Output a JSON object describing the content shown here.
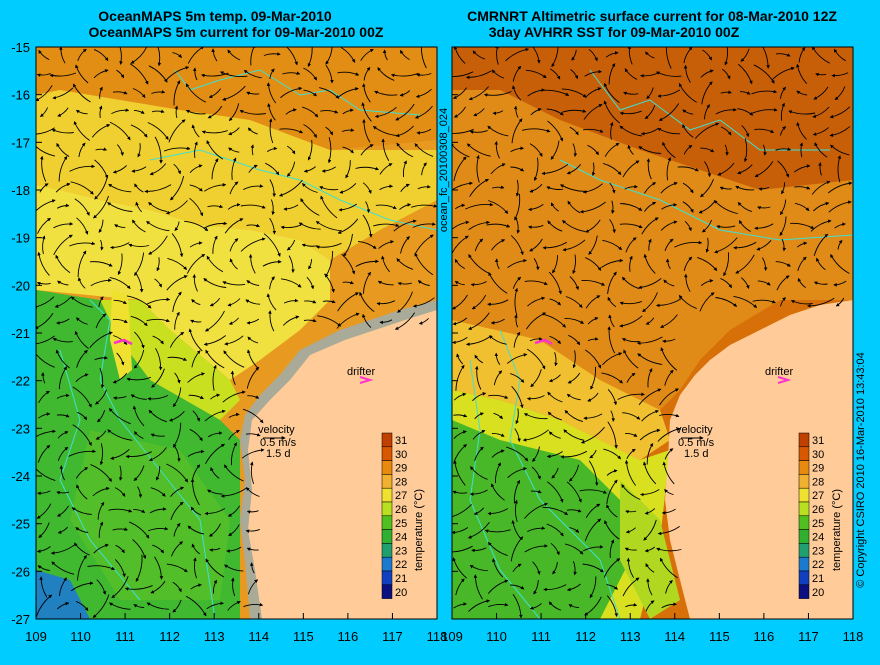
{
  "left_panel": {
    "title_line1": "OceanMAPS 5m temp. 09-Mar-2010",
    "title_line2": "OceanMAPS 5m current for 09-Mar-2010 00Z"
  },
  "right_panel": {
    "title_line1": "CMRNRT Altimetric surface current for 08-Mar-2010 12Z",
    "title_line2": "3day AVHRR SST for 09-Mar-2010 00Z"
  },
  "side_label": "ocean_fc_20100308_024",
  "copyright": "© Copyright CSIRO 2010   16-Mar-2010 13:43:04",
  "latitude_ticks": [
    "-15",
    "-16",
    "-17",
    "-18",
    "-19",
    "-20",
    "-21",
    "-22",
    "-23",
    "-24",
    "-25",
    "-26",
    "-27"
  ],
  "longitude_ticks": [
    "109",
    "110",
    "111",
    "112",
    "113",
    "114",
    "115",
    "116",
    "117",
    "118"
  ],
  "drifter_label": "drifter",
  "velocity_label": "velocity",
  "velocity_scale": "0.5 m/s",
  "velocity_days": "1.5 d",
  "colorbar": {
    "label": "temperature (°C)",
    "ticks": [
      "31",
      "30",
      "29",
      "28",
      "27",
      "26",
      "25",
      "24",
      "23",
      "22",
      "21",
      "20"
    ],
    "colors": [
      "#c04000",
      "#d85800",
      "#e88a10",
      "#f0b030",
      "#f0e030",
      "#b8e020",
      "#50c020",
      "#30b030",
      "#20a070",
      "#1a7ad0",
      "#1040c0",
      "#0a1080"
    ]
  },
  "colors": {
    "background": "#00ccff",
    "land": "#ffcc99",
    "isobath": "#40e0d0",
    "drifter": "#ff33cc"
  }
}
